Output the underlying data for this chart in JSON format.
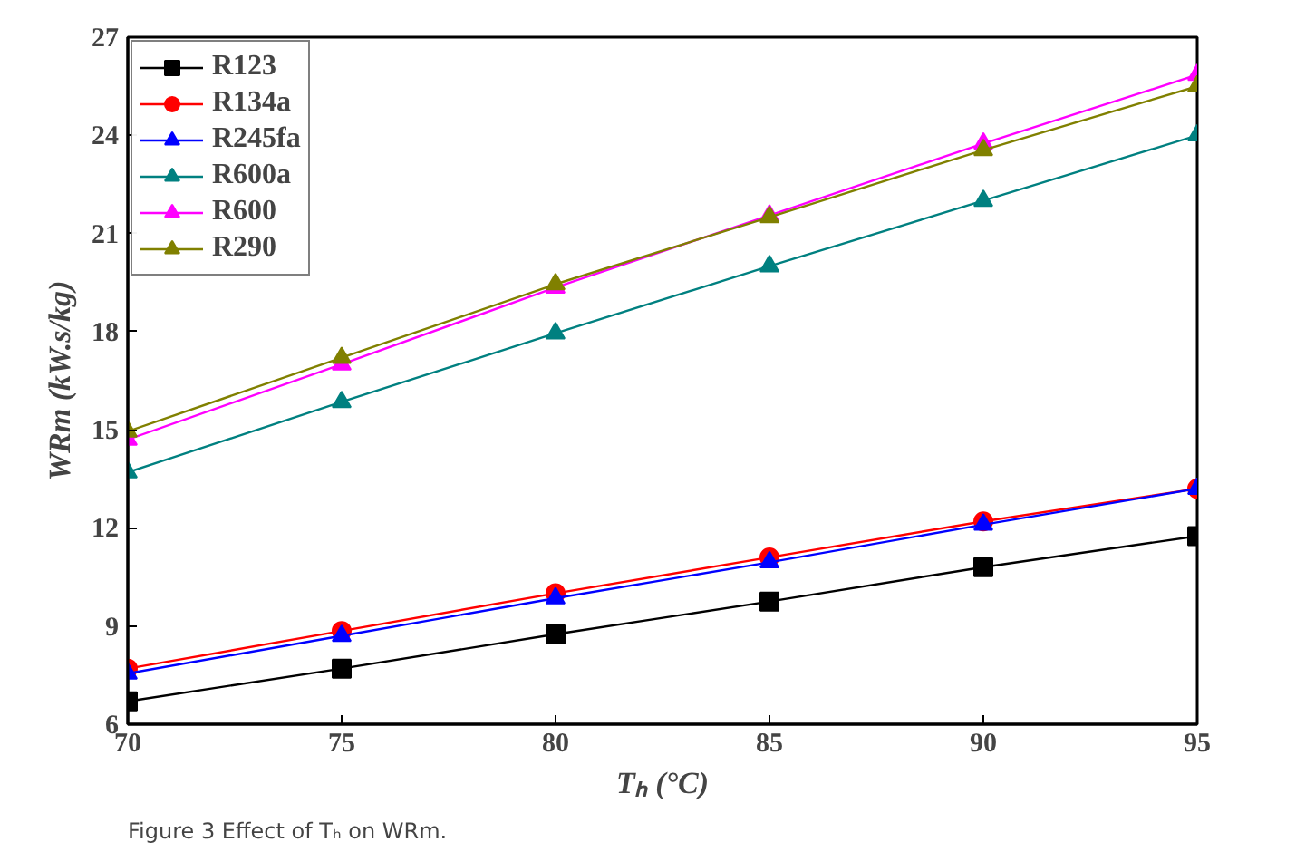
{
  "chart_data": {
    "type": "line",
    "xlabel": "Tₕ (°C)",
    "ylabel": "WRm (kW.s/kg)",
    "annotations": [
      "Figure 3 Effect of Tₕ on WRm."
    ],
    "x": [
      70,
      75,
      80,
      85,
      90,
      95
    ],
    "xlim": [
      70,
      95
    ],
    "xticks": [
      70,
      75,
      80,
      85,
      90,
      95
    ],
    "ylim": [
      6,
      27
    ],
    "yticks": [
      6,
      9,
      12,
      15,
      18,
      21,
      24,
      27
    ],
    "grid": false,
    "legend": "top left",
    "line_style": "solid",
    "series": [
      {
        "name": "R123",
        "color": "#000000",
        "marker": "square",
        "values": [
          6.7,
          7.7,
          8.75,
          9.75,
          10.8,
          11.75
        ]
      },
      {
        "name": "R134a",
        "color": "#ff0000",
        "marker": "circle",
        "values": [
          7.7,
          8.85,
          10.0,
          11.1,
          12.2,
          13.2
        ]
      },
      {
        "name": "R245fa",
        "color": "#0000ff",
        "marker": "triangle",
        "values": [
          7.55,
          8.7,
          9.85,
          10.95,
          12.1,
          13.2
        ]
      },
      {
        "name": "R600a",
        "color": "#008080",
        "marker": "triangle",
        "values": [
          13.7,
          15.85,
          17.95,
          20.0,
          22.0,
          24.0
        ]
      },
      {
        "name": "R600",
        "color": "#ff00ff",
        "marker": "triangle",
        "values": [
          14.7,
          17.0,
          19.35,
          21.55,
          23.75,
          25.85
        ]
      },
      {
        "name": "R290",
        "color": "#808000",
        "marker": "triangle",
        "values": [
          14.95,
          17.2,
          19.45,
          21.5,
          23.55,
          25.5
        ]
      }
    ]
  }
}
